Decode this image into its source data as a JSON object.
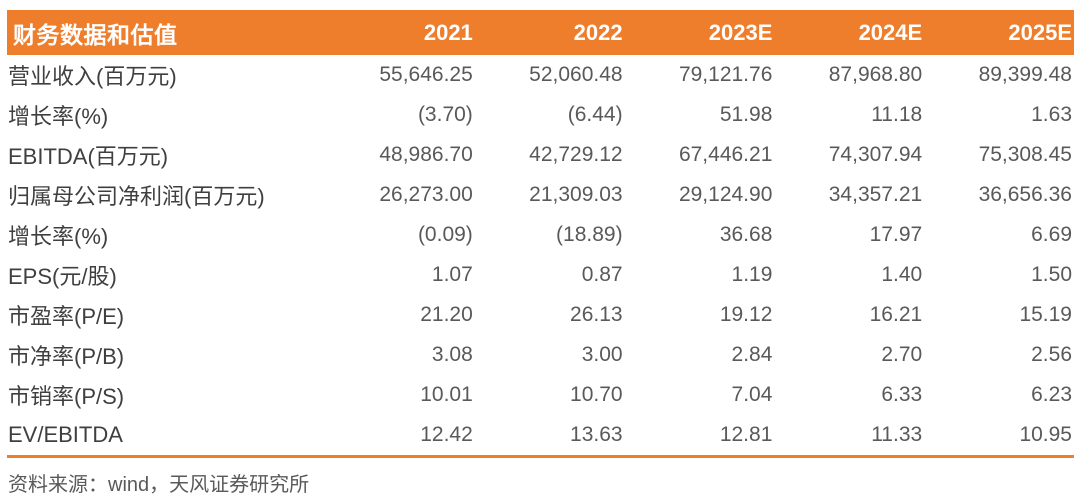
{
  "colors": {
    "accent_orange": "#EE7E2C",
    "header_text": "#FFFFFF",
    "label_text": "#3F3F3F",
    "value_text": "#595959",
    "footer_text": "#595959",
    "background": "#FFFFFF"
  },
  "table": {
    "header": {
      "title": "财务数据和估值",
      "columns": [
        "2021",
        "2022",
        "2023E",
        "2024E",
        "2025E"
      ]
    },
    "rows": [
      {
        "label": "营业收入(百万元)",
        "values": [
          "55,646.25",
          "52,060.48",
          "79,121.76",
          "87,968.80",
          "89,399.48"
        ]
      },
      {
        "label": "增长率(%)",
        "values": [
          "(3.70)",
          "(6.44)",
          "51.98",
          "11.18",
          "1.63"
        ]
      },
      {
        "label": "EBITDA(百万元)",
        "values": [
          "48,986.70",
          "42,729.12",
          "67,446.21",
          "74,307.94",
          "75,308.45"
        ]
      },
      {
        "label": "归属母公司净利润(百万元)",
        "values": [
          "26,273.00",
          "21,309.03",
          "29,124.90",
          "34,357.21",
          "36,656.36"
        ]
      },
      {
        "label": "增长率(%)",
        "values": [
          "(0.09)",
          "(18.89)",
          "36.68",
          "17.97",
          "6.69"
        ]
      },
      {
        "label": "EPS(元/股)",
        "values": [
          "1.07",
          "0.87",
          "1.19",
          "1.40",
          "1.50"
        ]
      },
      {
        "label": "市盈率(P/E)",
        "values": [
          "21.20",
          "26.13",
          "19.12",
          "16.21",
          "15.19"
        ]
      },
      {
        "label": "市净率(P/B)",
        "values": [
          "3.08",
          "3.00",
          "2.84",
          "2.70",
          "2.56"
        ]
      },
      {
        "label": "市销率(P/S)",
        "values": [
          "10.01",
          "10.70",
          "7.04",
          "6.33",
          "6.23"
        ]
      },
      {
        "label": "EV/EBITDA",
        "values": [
          "12.42",
          "13.63",
          "12.81",
          "11.33",
          "10.95"
        ]
      }
    ],
    "footer": "资料来源：wind，天风证券研究所"
  }
}
